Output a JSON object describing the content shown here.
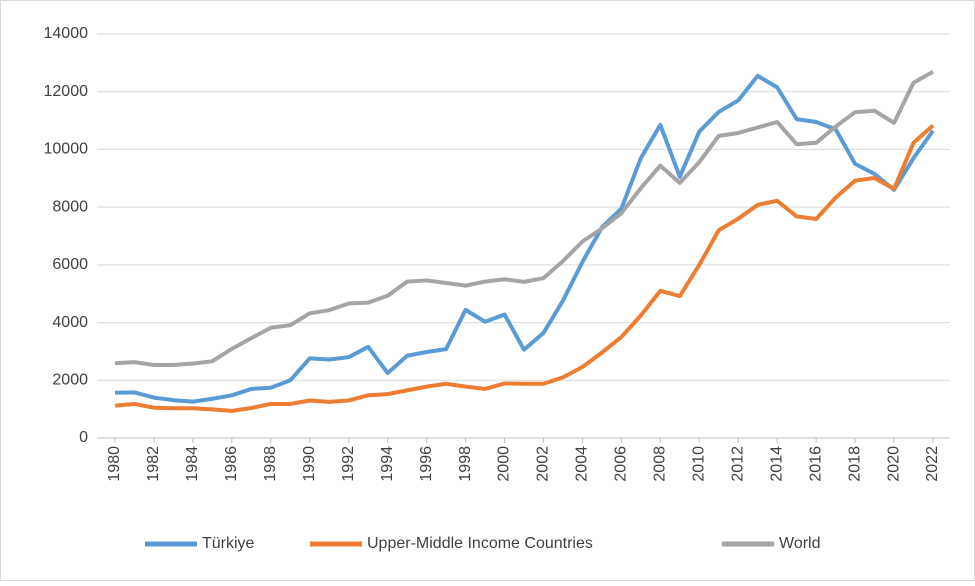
{
  "chart_data": {
    "type": "line",
    "x": [
      1980,
      1981,
      1982,
      1983,
      1984,
      1985,
      1986,
      1987,
      1988,
      1989,
      1990,
      1991,
      1992,
      1993,
      1994,
      1995,
      1996,
      1997,
      1998,
      1999,
      2000,
      2001,
      2002,
      2003,
      2004,
      2005,
      2006,
      2007,
      2008,
      2009,
      2010,
      2011,
      2012,
      2013,
      2014,
      2015,
      2016,
      2017,
      2018,
      2019,
      2020,
      2021,
      2022
    ],
    "xlim": [
      1980,
      2022
    ],
    "xticks": [
      1980,
      1982,
      1984,
      1986,
      1988,
      1990,
      1992,
      1994,
      1996,
      1998,
      2000,
      2002,
      2004,
      2006,
      2008,
      2010,
      2012,
      2014,
      2016,
      2018,
      2020,
      2022
    ],
    "ylim": [
      0,
      14000
    ],
    "yticks": [
      0,
      2000,
      4000,
      6000,
      8000,
      10000,
      12000,
      14000
    ],
    "grid": true,
    "legend": "bottom",
    "series": [
      {
        "name": "Türkiye",
        "color": "#5b9bd5",
        "values": [
          1570,
          1580,
          1400,
          1310,
          1260,
          1360,
          1480,
          1700,
          1740,
          2000,
          2760,
          2720,
          2800,
          3160,
          2250,
          2850,
          2980,
          3080,
          4440,
          4030,
          4280,
          3060,
          3640,
          4760,
          6100,
          7300,
          7950,
          9700,
          10850,
          9050,
          10620,
          11300,
          11700,
          12550,
          12150,
          11050,
          10950,
          10700,
          9500,
          9150,
          8600,
          9700,
          10650
        ]
      },
      {
        "name": "Upper-Middle Income Countries",
        "color": "#ed7d31",
        "values": [
          1120,
          1180,
          1050,
          1030,
          1030,
          990,
          940,
          1040,
          1180,
          1180,
          1300,
          1250,
          1300,
          1480,
          1520,
          1650,
          1780,
          1880,
          1780,
          1700,
          1890,
          1880,
          1880,
          2100,
          2460,
          2960,
          3500,
          4250,
          5100,
          4920,
          6000,
          7200,
          7600,
          8080,
          8220,
          7680,
          7590,
          8330,
          8920,
          9010,
          8630,
          10230,
          10830
        ]
      },
      {
        "name": "World",
        "color": "#a5a5a5",
        "values": [
          2590,
          2630,
          2530,
          2530,
          2580,
          2660,
          3090,
          3460,
          3820,
          3910,
          4320,
          4430,
          4660,
          4690,
          4930,
          5420,
          5460,
          5370,
          5280,
          5420,
          5500,
          5410,
          5540,
          6130,
          6810,
          7260,
          7790,
          8660,
          9440,
          8840,
          9560,
          10470,
          10570,
          10760,
          10950,
          10180,
          10230,
          10790,
          11290,
          11340,
          10920,
          12310,
          12690
        ]
      }
    ]
  }
}
